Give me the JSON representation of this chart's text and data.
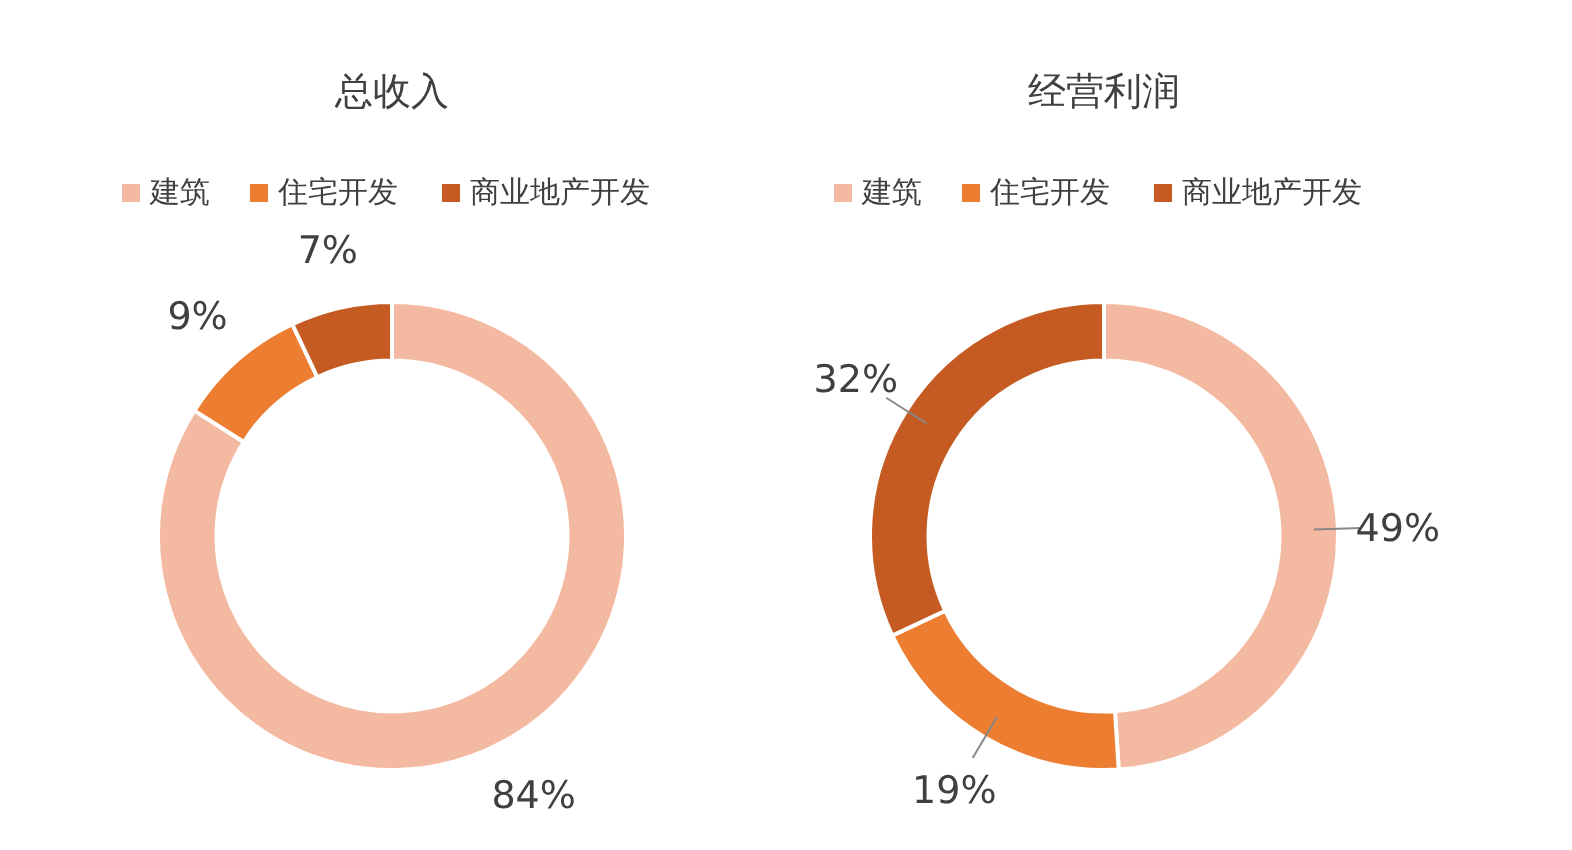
{
  "chart_data": [
    {
      "type": "donut",
      "title": "总收入",
      "categories": [
        "建筑",
        "住宅开发",
        "商业地产开发"
      ],
      "values": [
        84,
        9,
        7
      ],
      "value_labels": [
        "84%",
        "9%",
        "7%"
      ],
      "colors": [
        "#f4b9a1",
        "#ed7d31",
        "#c55a22"
      ],
      "legend": "top"
    },
    {
      "type": "donut",
      "title": "经营利润",
      "categories": [
        "建筑",
        "住宅开发",
        "商业地产开发"
      ],
      "values": [
        49,
        19,
        32
      ],
      "value_labels": [
        "49%",
        "19%",
        "32%"
      ],
      "colors": [
        "#f4b9a1",
        "#ed7d31",
        "#c55a22"
      ],
      "legend": "top"
    }
  ]
}
